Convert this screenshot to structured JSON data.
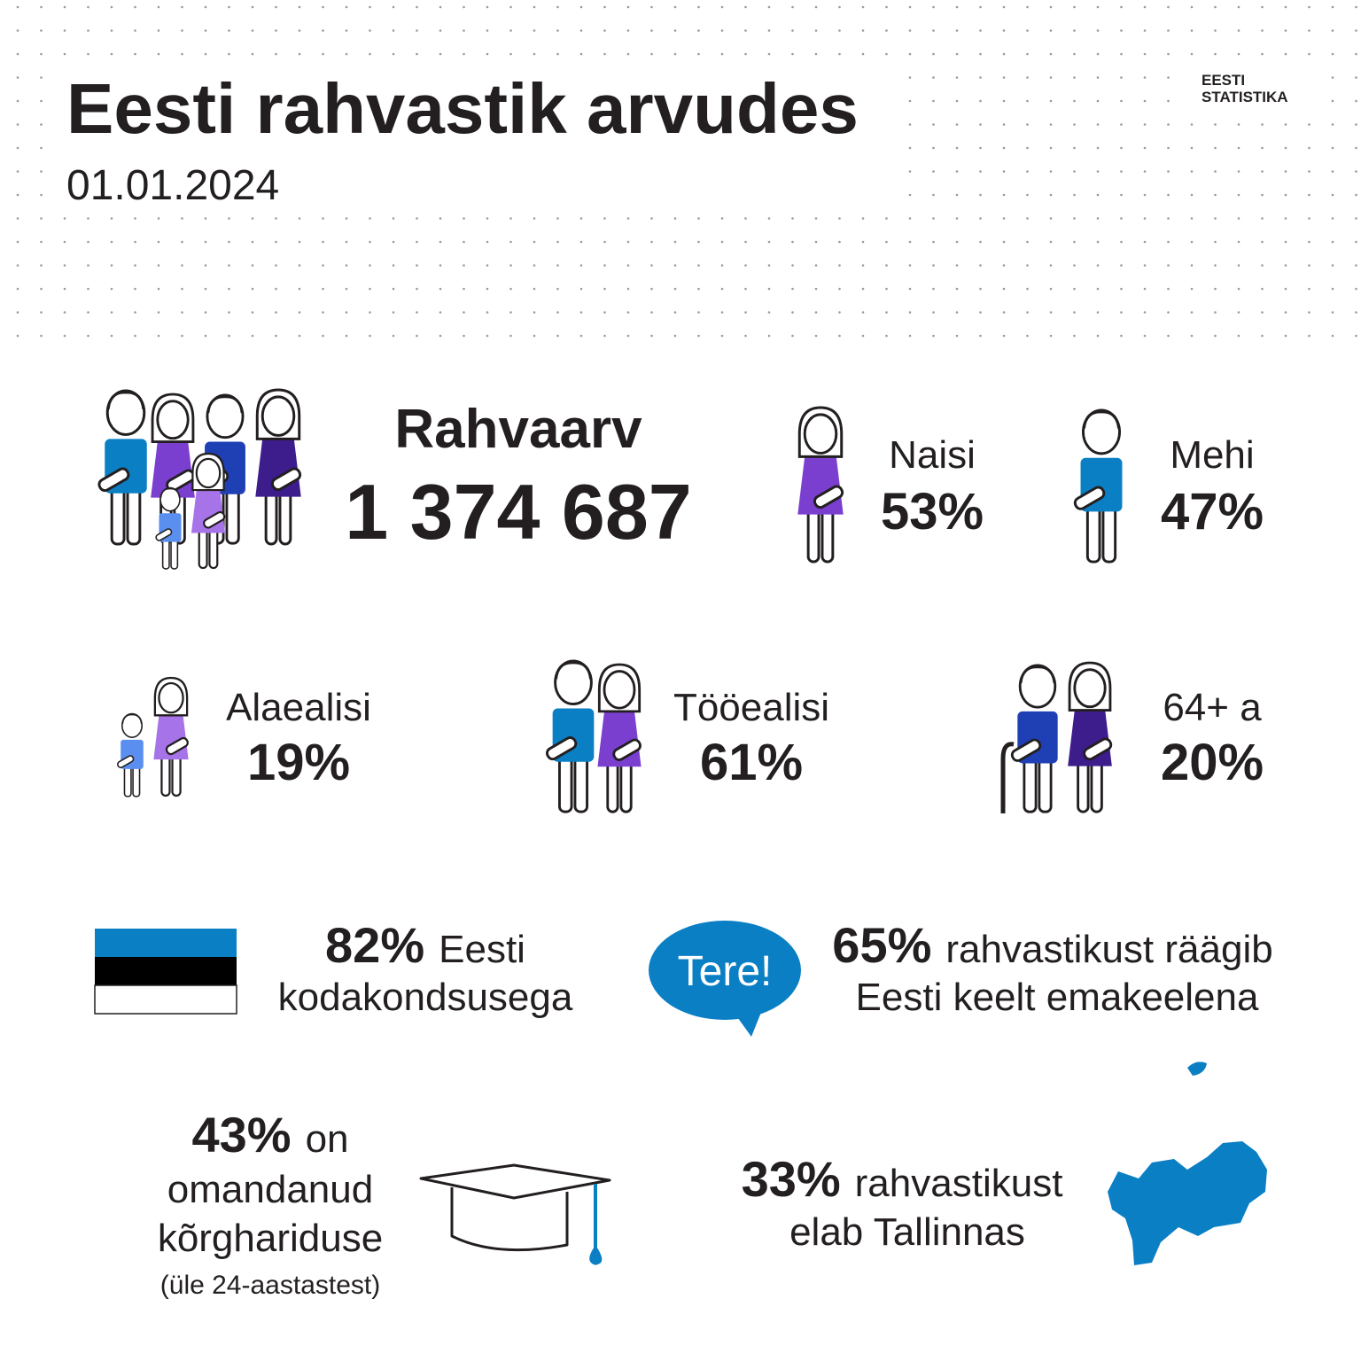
{
  "header": {
    "title": "Eesti rahvastik arvudes",
    "date": "01.01.2024"
  },
  "logo": {
    "line1": "EESTI",
    "line2": "STATISTIKA"
  },
  "population": {
    "label": "Rahvaarv",
    "value": "1 374 687"
  },
  "sex": [
    {
      "label": "Naisi",
      "value": "53%"
    },
    {
      "label": "Mehi",
      "value": "47%"
    }
  ],
  "age": [
    {
      "label": "Alaealisi",
      "value": "19%"
    },
    {
      "label": "Tööealisi",
      "value": "61%"
    },
    {
      "label": "64+ a",
      "value": "20%"
    }
  ],
  "citizenship": {
    "value": "82%",
    "text1": "Eesti",
    "text2": "kodakondsusega"
  },
  "language": {
    "bubble": "Tere!",
    "value": "65%",
    "text1": "rahvastikust räägib",
    "text2": "Eesti keelt emakeelena"
  },
  "education": {
    "value": "43%",
    "text1": "on",
    "text2": "omandanud",
    "text3": "kõrghariduse",
    "note": "(üle 24-aastastest)"
  },
  "tallinn": {
    "value": "33%",
    "text1": "rahvastikust",
    "text2": "elab Tallinnas"
  }
}
